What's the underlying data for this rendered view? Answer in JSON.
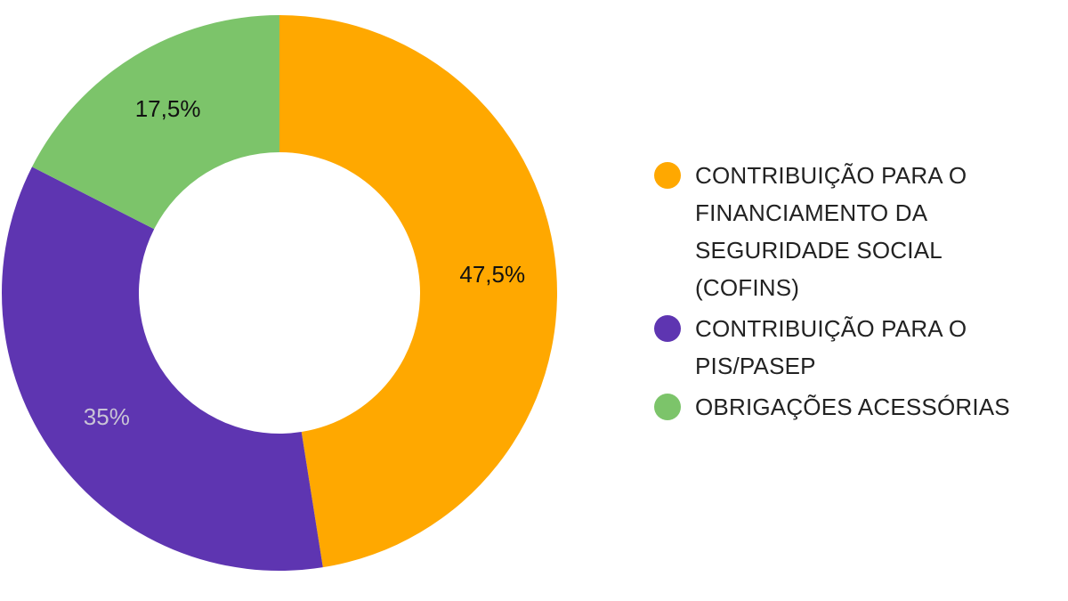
{
  "chart_data": {
    "type": "pie",
    "variant": "donut",
    "slices": [
      {
        "name": "CONTRIBUIÇÃO PARA O FINANCIAMENTO DA SEGURIDADE SOCIAL (COFINS)",
        "name_lines": [
          "CONTRIBUIÇÃO PARA O",
          "FINANCIAMENTO DA",
          "SEGURIDADE SOCIAL",
          "(COFINS)"
        ],
        "value": 47.5,
        "label": "47,5%",
        "color": "#FFA800",
        "label_color": "#111111"
      },
      {
        "name": "CONTRIBUIÇÃO PARA O PIS/PASEP",
        "name_lines": [
          "CONTRIBUIÇÃO PARA O",
          "PIS/PASEP"
        ],
        "value": 35,
        "label": "35%",
        "color": "#5E35B1",
        "label_color": "#C9C4D6"
      },
      {
        "name": "OBRIGAÇÕES ACESSÓRIAS",
        "name_lines": [
          "OBRIGAÇÕES ACESSÓRIAS"
        ],
        "value": 17.5,
        "label": "17,5%",
        "color": "#7CC46A",
        "label_color": "#111111"
      }
    ],
    "start_angle": "12 o'clock",
    "direction": "clockwise",
    "legend_position": "right"
  }
}
